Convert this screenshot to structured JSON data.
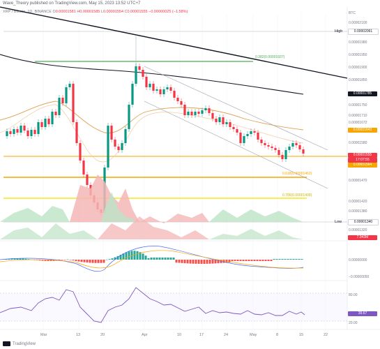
{
  "header": {
    "text": "Wave_Theory published on TradingView.com, May 15, 2023 13:52 UTC+7"
  },
  "legend": {
    "symbol": "XRP / Bitcoin, 1D, BINANCE",
    "o": "O",
    "o_val": "0.00001581",
    "h": "H",
    "h_val": "0.00001585",
    "l": "L",
    "l_val": "0.00001554",
    "c": "C",
    "c_val": "0.00001555",
    "change": "−0.00000025 (−1.58%)"
  },
  "price_axis": {
    "currency": "BTC",
    "ticks": [
      "0.00002100",
      "0.00002061",
      "0.00001980",
      "0.00001950",
      "0.00001900",
      "0.00001850",
      "0.00001800",
      "0.00001750",
      "0.00001710",
      "0.00001672",
      "0.00001620",
      "0.00001580",
      "0.00001530",
      "0.00001470",
      "0.00001420",
      "0.00001380",
      "0.00001320"
    ],
    "high_label": "High",
    "high_value": "0.00002061",
    "low_label": "Low",
    "low_value": "0.00001340",
    "tag_1785": "0.00001785",
    "tag_1643": "0.00001643",
    "tag_last": "0.00001555",
    "tag_timer": "17:07:55",
    "tag_1564": "0.00001564",
    "rsi_tag": "39.67",
    "vol_tag": "7.943M"
  },
  "fib_labels": {
    "f0382": "0.382(0.00001937)",
    "f0618": "0.618(0.00001462)",
    "f0786": "0.786(0.00001408)"
  },
  "macd_axis": {
    "zero": "0.00000000",
    "neg": "−0.00000050"
  },
  "rsi_axis": {
    "top": "80.00",
    "bottom": "20.00"
  },
  "time_axis": [
    "Mar",
    "13",
    "20",
    "Apr",
    "10",
    "17",
    "24",
    "May",
    "8",
    "15",
    "22"
  ],
  "footer": {
    "brand": "TradingView"
  },
  "colors": {
    "up": "#089981",
    "down": "#f23645",
    "orange": "#f7a600",
    "yellow": "#f9e51a",
    "green_line": "#4caf50"
  }
}
